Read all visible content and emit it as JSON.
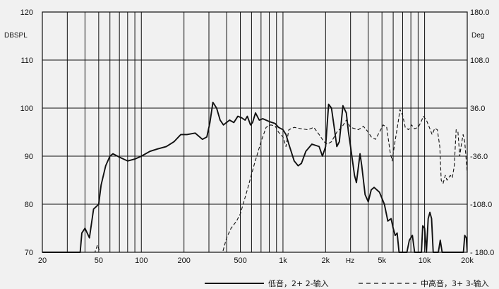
{
  "chart_data": {
    "type": "line",
    "title": "",
    "left_unit_label": "DBSPL",
    "right_unit_label": "Deg",
    "x_unit_label": "Hz",
    "x_scale": "log",
    "xlim": [
      20,
      20000
    ],
    "ylim": [
      70,
      120
    ],
    "y2lim": [
      -180,
      180
    ],
    "grid": true,
    "x_ticks": [
      {
        "value": 20,
        "label": "20"
      },
      {
        "value": 50,
        "label": "50"
      },
      {
        "value": 100,
        "label": "100"
      },
      {
        "value": 200,
        "label": "200"
      },
      {
        "value": 500,
        "label": "500"
      },
      {
        "value": 1000,
        "label": "1k"
      },
      {
        "value": 2000,
        "label": "2k"
      },
      {
        "value": 5000,
        "label": "5k"
      },
      {
        "value": 10000,
        "label": "10k"
      },
      {
        "value": 20000,
        "label": "20k"
      }
    ],
    "x_gridlines": [
      20,
      30,
      40,
      50,
      60,
      70,
      80,
      90,
      100,
      200,
      300,
      400,
      500,
      600,
      700,
      800,
      900,
      1000,
      2000,
      3000,
      4000,
      5000,
      6000,
      7000,
      8000,
      9000,
      10000,
      20000
    ],
    "y_ticks": [
      {
        "value": 70,
        "label": "70"
      },
      {
        "value": 80,
        "label": "80"
      },
      {
        "value": 90,
        "label": "90"
      },
      {
        "value": 100,
        "label": "100"
      },
      {
        "value": 110,
        "label": "110"
      },
      {
        "value": 120,
        "label": "120"
      }
    ],
    "y2_ticks": [
      {
        "value": 180,
        "label": "180.0"
      },
      {
        "value": 108,
        "label": "108.0"
      },
      {
        "value": 36,
        "label": "36.0"
      },
      {
        "value": -36,
        "label": "-36.0"
      },
      {
        "value": -108,
        "label": "-108.0"
      },
      {
        "value": -180,
        "label": "- 180.0"
      }
    ],
    "legend_position": "bottom-right",
    "series": [
      {
        "name": "低音，2+ 2-输入",
        "style": "solid",
        "color": "#111111",
        "points": [
          [
            20,
            70
          ],
          [
            37,
            70
          ],
          [
            38,
            74
          ],
          [
            40,
            75
          ],
          [
            43,
            73
          ],
          [
            46,
            79
          ],
          [
            48,
            79.5
          ],
          [
            50,
            80
          ],
          [
            52,
            84
          ],
          [
            56,
            88
          ],
          [
            60,
            90
          ],
          [
            63,
            90.5
          ],
          [
            70,
            89.8
          ],
          [
            80,
            89
          ],
          [
            90,
            89.4
          ],
          [
            100,
            90
          ],
          [
            115,
            91
          ],
          [
            130,
            91.5
          ],
          [
            150,
            92
          ],
          [
            170,
            93
          ],
          [
            190,
            94.5
          ],
          [
            210,
            94.5
          ],
          [
            240,
            94.8
          ],
          [
            270,
            93.5
          ],
          [
            290,
            94
          ],
          [
            305,
            97
          ],
          [
            320,
            101.2
          ],
          [
            340,
            100
          ],
          [
            360,
            97.5
          ],
          [
            380,
            96.5
          ],
          [
            420,
            97.5
          ],
          [
            450,
            97
          ],
          [
            480,
            98.3
          ],
          [
            510,
            98
          ],
          [
            540,
            97.5
          ],
          [
            560,
            98.3
          ],
          [
            590,
            96.5
          ],
          [
            610,
            97
          ],
          [
            640,
            99
          ],
          [
            680,
            97.5
          ],
          [
            720,
            97.8
          ],
          [
            800,
            97.2
          ],
          [
            880,
            96.8
          ],
          [
            930,
            96
          ],
          [
            1000,
            95.5
          ],
          [
            1050,
            94.5
          ],
          [
            1100,
            92.5
          ],
          [
            1200,
            89
          ],
          [
            1280,
            88
          ],
          [
            1350,
            88.5
          ],
          [
            1450,
            91
          ],
          [
            1600,
            92.5
          ],
          [
            1800,
            92
          ],
          [
            1900,
            90
          ],
          [
            2000,
            92
          ],
          [
            2100,
            100.8
          ],
          [
            2200,
            100
          ],
          [
            2300,
            96
          ],
          [
            2400,
            92
          ],
          [
            2500,
            93
          ],
          [
            2650,
            100.5
          ],
          [
            2800,
            99
          ],
          [
            2900,
            95
          ],
          [
            3000,
            92
          ],
          [
            3200,
            86
          ],
          [
            3300,
            84.5
          ],
          [
            3500,
            90.5
          ],
          [
            3600,
            88
          ],
          [
            3800,
            82
          ],
          [
            4000,
            80.5
          ],
          [
            4200,
            83
          ],
          [
            4400,
            83.5
          ],
          [
            4800,
            82.5
          ],
          [
            5200,
            80
          ],
          [
            5500,
            76.5
          ],
          [
            5800,
            77
          ],
          [
            6000,
            75
          ],
          [
            6200,
            73.5
          ],
          [
            6400,
            74
          ],
          [
            6600,
            70
          ],
          [
            7500,
            70
          ],
          [
            7800,
            72.5
          ],
          [
            8200,
            73.5
          ],
          [
            8500,
            70
          ],
          [
            9500,
            70
          ],
          [
            9700,
            75.5
          ],
          [
            10000,
            75
          ],
          [
            10300,
            70
          ],
          [
            10600,
            77
          ],
          [
            10900,
            78.3
          ],
          [
            11200,
            77
          ],
          [
            11500,
            70
          ],
          [
            12500,
            70
          ],
          [
            12900,
            72.5
          ],
          [
            13300,
            70
          ],
          [
            18800,
            70
          ],
          [
            19200,
            73.5
          ],
          [
            19700,
            73
          ],
          [
            20000,
            70
          ]
        ]
      },
      {
        "name": "中高音，3+ 3-输入",
        "style": "dashed",
        "color": "#111111",
        "points": [
          [
            20,
            70
          ],
          [
            47,
            70
          ],
          [
            49,
            71.5
          ],
          [
            51,
            70
          ],
          [
            375,
            70
          ],
          [
            400,
            73
          ],
          [
            430,
            75
          ],
          [
            470,
            76.5
          ],
          [
            500,
            78
          ],
          [
            560,
            83
          ],
          [
            630,
            88.5
          ],
          [
            700,
            93
          ],
          [
            760,
            96
          ],
          [
            820,
            96.5
          ],
          [
            880,
            96.3
          ],
          [
            930,
            95
          ],
          [
            1000,
            94
          ],
          [
            1050,
            92
          ],
          [
            1100,
            95.5
          ],
          [
            1200,
            96
          ],
          [
            1350,
            95.7
          ],
          [
            1500,
            95.5
          ],
          [
            1650,
            96
          ],
          [
            1800,
            94.5
          ],
          [
            1950,
            93
          ],
          [
            2050,
            92.5
          ],
          [
            2200,
            93
          ],
          [
            2400,
            95
          ],
          [
            2600,
            96
          ],
          [
            2800,
            97.5
          ],
          [
            3000,
            96
          ],
          [
            3400,
            95.5
          ],
          [
            3700,
            96.2
          ],
          [
            4000,
            95
          ],
          [
            4200,
            94
          ],
          [
            4500,
            93.5
          ],
          [
            4900,
            95.5
          ],
          [
            5100,
            96.5
          ],
          [
            5400,
            96
          ],
          [
            5700,
            91
          ],
          [
            5900,
            89
          ],
          [
            6100,
            92
          ],
          [
            6500,
            97
          ],
          [
            6700,
            99.7
          ],
          [
            7000,
            98.5
          ],
          [
            7300,
            96
          ],
          [
            7700,
            95.5
          ],
          [
            8100,
            96.5
          ],
          [
            8500,
            95.7
          ],
          [
            9000,
            96
          ],
          [
            9400,
            97
          ],
          [
            9800,
            98.3
          ],
          [
            10300,
            97.5
          ],
          [
            10800,
            96
          ],
          [
            11300,
            94.5
          ],
          [
            11800,
            95.8
          ],
          [
            12300,
            95.5
          ],
          [
            12800,
            92
          ],
          [
            13100,
            85
          ],
          [
            13500,
            84.3
          ],
          [
            14000,
            86
          ],
          [
            14400,
            85
          ],
          [
            15200,
            86
          ],
          [
            15700,
            85.5
          ],
          [
            16200,
            88
          ],
          [
            16700,
            95.5
          ],
          [
            17200,
            95
          ],
          [
            17700,
            90
          ],
          [
            18200,
            92.5
          ],
          [
            18700,
            94.5
          ],
          [
            19200,
            93
          ],
          [
            19700,
            89
          ],
          [
            20000,
            86.5
          ],
          [
            21000,
            83
          ]
        ]
      }
    ]
  }
}
